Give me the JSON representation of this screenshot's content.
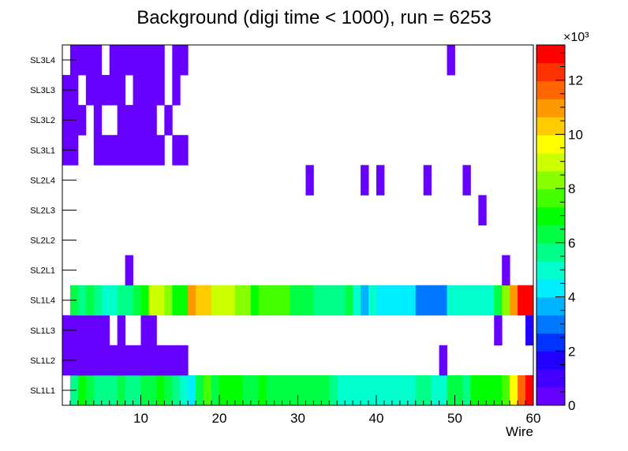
{
  "chart_data": {
    "type": "heatmap",
    "title": "Background (digi time < 1000), run = 6253",
    "xlabel": "Wire",
    "ylabel": "",
    "x_range": [
      0,
      60
    ],
    "x_ticks": [
      10,
      20,
      30,
      40,
      50,
      60
    ],
    "y_categories": [
      "SL1L1",
      "SL1L2",
      "SL1L3",
      "SL1L4",
      "SL2L1",
      "SL2L2",
      "SL2L3",
      "SL2L4",
      "SL3L1",
      "SL3L2",
      "SL3L3",
      "SL3L4"
    ],
    "colorbar": {
      "range": [
        0,
        13300
      ],
      "ticks": [
        0,
        2,
        4,
        6,
        8,
        10,
        12
      ],
      "exponent_label": "×10³",
      "tick_scale": 1000
    },
    "palette": [
      "#6600ff",
      "#4400ff",
      "#2200ff",
      "#0033ff",
      "#0077ff",
      "#00b3ff",
      "#00eeff",
      "#00ffcc",
      "#00ff88",
      "#00ff44",
      "#00ff00",
      "#44ff00",
      "#88ff00",
      "#ccff00",
      "#ffff00",
      "#ffcc00",
      "#ff9900",
      "#ff6600",
      "#ff3300",
      "#ff0000"
    ],
    "rows": {
      "SL1L1": [
        [
          1,
          5800
        ],
        [
          2,
          6800
        ],
        [
          3,
          6400
        ],
        [
          4,
          5900
        ],
        [
          5,
          5700
        ],
        [
          6,
          5800
        ],
        [
          7,
          6400
        ],
        [
          8,
          5900
        ],
        [
          9,
          5800
        ],
        [
          10,
          6300
        ],
        [
          11,
          6600
        ],
        [
          12,
          6900
        ],
        [
          13,
          6000
        ],
        [
          14,
          5600
        ],
        [
          15,
          5200
        ],
        [
          16,
          4000
        ],
        [
          17,
          6500
        ],
        [
          18,
          7500
        ],
        [
          19,
          6600
        ],
        [
          20,
          7200
        ],
        [
          21,
          7200
        ],
        [
          22,
          7200
        ],
        [
          23,
          6600
        ],
        [
          24,
          6400
        ],
        [
          25,
          6800
        ],
        [
          26,
          6000
        ],
        [
          27,
          6400
        ],
        [
          28,
          6600
        ],
        [
          29,
          6600
        ],
        [
          30,
          6600
        ],
        [
          31,
          6600
        ],
        [
          32,
          6000
        ],
        [
          33,
          6000
        ],
        [
          34,
          5600
        ],
        [
          35,
          5000
        ],
        [
          36,
          5000
        ],
        [
          37,
          5000
        ],
        [
          38,
          5000
        ],
        [
          39,
          5000
        ],
        [
          40,
          5200
        ],
        [
          41,
          5200
        ],
        [
          42,
          5200
        ],
        [
          43,
          5200
        ],
        [
          44,
          5200
        ],
        [
          45,
          5500
        ],
        [
          46,
          5500
        ],
        [
          47,
          4800
        ],
        [
          48,
          4800
        ],
        [
          49,
          6300
        ],
        [
          50,
          6400
        ],
        [
          51,
          5800
        ],
        [
          52,
          6900
        ],
        [
          53,
          6900
        ],
        [
          54,
          6900
        ],
        [
          55,
          6900
        ],
        [
          56,
          7400
        ],
        [
          57,
          9800
        ],
        [
          58,
          11600
        ],
        [
          59,
          13000
        ]
      ],
      "SL1L2": [
        [
          0,
          300
        ],
        [
          1,
          300
        ],
        [
          2,
          300
        ],
        [
          3,
          300
        ],
        [
          4,
          300
        ],
        [
          5,
          300
        ],
        [
          6,
          300
        ],
        [
          7,
          300
        ],
        [
          8,
          300
        ],
        [
          9,
          300
        ],
        [
          10,
          300
        ],
        [
          11,
          300
        ],
        [
          12,
          300
        ],
        [
          13,
          300
        ],
        [
          14,
          300
        ],
        [
          15,
          300
        ],
        [
          48,
          300
        ]
      ],
      "SL1L3": [
        [
          0,
          300
        ],
        [
          1,
          300
        ],
        [
          2,
          300
        ],
        [
          3,
          300
        ],
        [
          4,
          300
        ],
        [
          5,
          300
        ],
        [
          7,
          300
        ],
        [
          10,
          300
        ],
        [
          11,
          300
        ],
        [
          55,
          300
        ],
        [
          59,
          1800
        ]
      ],
      "SL1L4": [
        [
          1,
          6300
        ],
        [
          2,
          5800
        ],
        [
          3,
          6300
        ],
        [
          4,
          5800
        ],
        [
          5,
          5200
        ],
        [
          6,
          5200
        ],
        [
          7,
          5700
        ],
        [
          8,
          5700
        ],
        [
          9,
          6000
        ],
        [
          10,
          7300
        ],
        [
          11,
          8700
        ],
        [
          12,
          8700
        ],
        [
          13,
          8200
        ],
        [
          14,
          7000
        ],
        [
          15,
          7200
        ],
        [
          16,
          10900
        ],
        [
          17,
          10000
        ],
        [
          18,
          10000
        ],
        [
          19,
          9100
        ],
        [
          20,
          9100
        ],
        [
          21,
          9100
        ],
        [
          22,
          8200
        ],
        [
          23,
          8200
        ],
        [
          24,
          6900
        ],
        [
          25,
          7400
        ],
        [
          26,
          7400
        ],
        [
          27,
          7400
        ],
        [
          28,
          7400
        ],
        [
          29,
          6600
        ],
        [
          30,
          6600
        ],
        [
          31,
          6600
        ],
        [
          32,
          5700
        ],
        [
          33,
          5700
        ],
        [
          34,
          5700
        ],
        [
          35,
          5700
        ],
        [
          36,
          6000
        ],
        [
          37,
          5000
        ],
        [
          38,
          3700
        ],
        [
          39,
          5200
        ],
        [
          40,
          4600
        ],
        [
          41,
          4600
        ],
        [
          42,
          4600
        ],
        [
          43,
          4600
        ],
        [
          44,
          4600
        ],
        [
          45,
          3300
        ],
        [
          46,
          3300
        ],
        [
          47,
          3300
        ],
        [
          48,
          3300
        ],
        [
          49,
          5000
        ],
        [
          50,
          5300
        ],
        [
          51,
          5300
        ],
        [
          52,
          5300
        ],
        [
          53,
          5300
        ],
        [
          54,
          5300
        ],
        [
          55,
          6300
        ],
        [
          56,
          8500
        ],
        [
          57,
          11100
        ],
        [
          58,
          13000
        ],
        [
          59,
          13000
        ]
      ],
      "SL2L1": [
        [
          8,
          300
        ],
        [
          56,
          300
        ]
      ],
      "SL2L2": [],
      "SL2L3": [
        [
          53,
          300
        ]
      ],
      "SL2L4": [
        [
          31,
          300
        ],
        [
          38,
          300
        ],
        [
          40,
          300
        ],
        [
          46,
          300
        ],
        [
          51,
          300
        ]
      ],
      "SL3L1": [
        [
          0,
          300
        ],
        [
          1,
          300
        ],
        [
          4,
          300
        ],
        [
          5,
          300
        ],
        [
          6,
          300
        ],
        [
          7,
          300
        ],
        [
          8,
          300
        ],
        [
          9,
          300
        ],
        [
          10,
          300
        ],
        [
          11,
          300
        ],
        [
          12,
          300
        ],
        [
          14,
          300
        ],
        [
          15,
          300
        ]
      ],
      "SL3L2": [
        [
          0,
          300
        ],
        [
          1,
          300
        ],
        [
          2,
          300
        ],
        [
          4,
          300
        ],
        [
          7,
          300
        ],
        [
          8,
          300
        ],
        [
          9,
          300
        ],
        [
          10,
          300
        ],
        [
          11,
          300
        ],
        [
          13,
          300
        ]
      ],
      "SL3L3": [
        [
          0,
          300
        ],
        [
          1,
          300
        ],
        [
          3,
          300
        ],
        [
          4,
          300
        ],
        [
          5,
          300
        ],
        [
          6,
          300
        ],
        [
          7,
          300
        ],
        [
          9,
          300
        ],
        [
          10,
          300
        ],
        [
          11,
          300
        ],
        [
          12,
          300
        ],
        [
          14,
          300
        ]
      ],
      "SL3L4": [
        [
          1,
          300
        ],
        [
          2,
          300
        ],
        [
          3,
          300
        ],
        [
          4,
          300
        ],
        [
          6,
          300
        ],
        [
          7,
          300
        ],
        [
          8,
          300
        ],
        [
          9,
          300
        ],
        [
          10,
          300
        ],
        [
          11,
          300
        ],
        [
          12,
          300
        ],
        [
          14,
          300
        ],
        [
          15,
          300
        ],
        [
          49,
          300
        ]
      ]
    }
  }
}
